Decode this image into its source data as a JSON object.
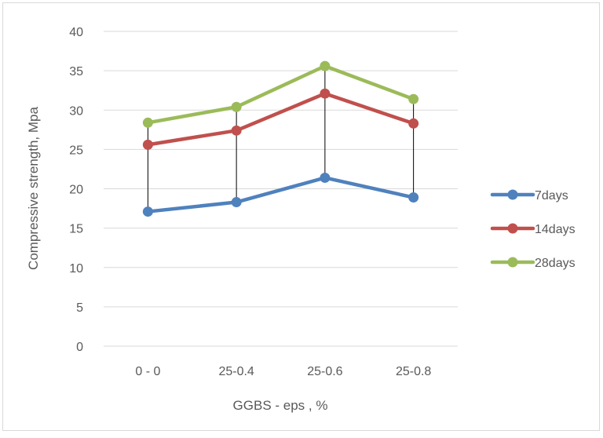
{
  "chart_data": {
    "type": "line",
    "title": "",
    "xlabel": "GGBS - eps , %",
    "ylabel": "Compressive strength, Mpa",
    "categories": [
      "0 - 0",
      "25-0.4",
      "25-0.6",
      "25-0.8"
    ],
    "ylim": [
      0,
      40
    ],
    "yticks": [
      "0",
      "5",
      "10",
      "15",
      "20",
      "25",
      "30",
      "35",
      "40"
    ],
    "grid": true,
    "legend_position": "right",
    "drop_lines": true,
    "series": [
      {
        "name": "7days",
        "values": [
          17.1,
          18.3,
          21.4,
          18.9
        ],
        "color": "#4F81BD"
      },
      {
        "name": "14days",
        "values": [
          25.6,
          27.4,
          32.1,
          28.3
        ],
        "color": "#C0504D"
      },
      {
        "name": "28days",
        "values": [
          28.4,
          30.4,
          35.6,
          31.4
        ],
        "color": "#9BBB59"
      }
    ]
  }
}
